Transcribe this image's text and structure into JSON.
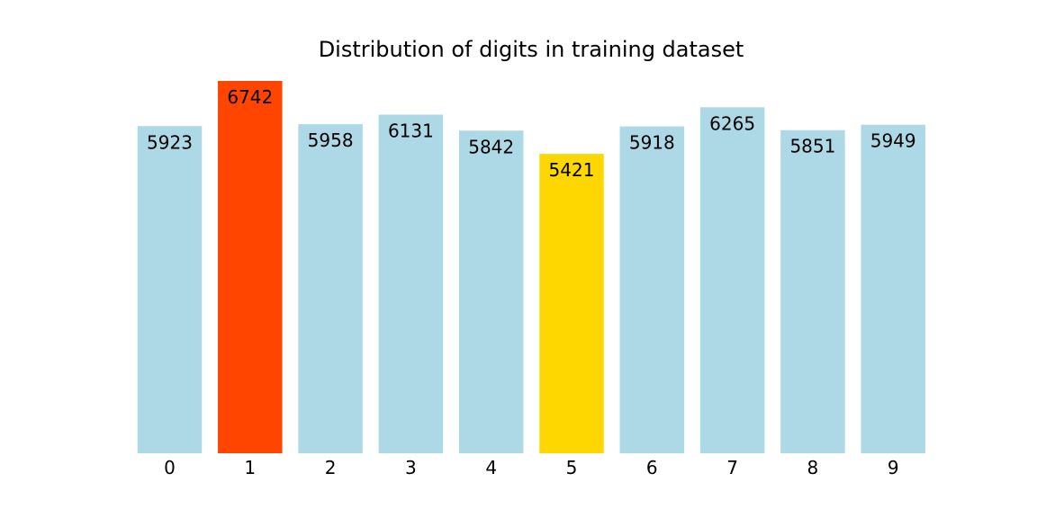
{
  "chart_data": {
    "type": "bar",
    "title": "Distribution of digits in training dataset",
    "xlabel": "",
    "ylabel": "",
    "categories": [
      "0",
      "1",
      "2",
      "3",
      "4",
      "5",
      "6",
      "7",
      "8",
      "9"
    ],
    "values": [
      5923,
      6742,
      5958,
      6131,
      5842,
      5421,
      5918,
      6265,
      5851,
      5949
    ],
    "data_labels": [
      "5923",
      "6742",
      "5958",
      "6131",
      "5842",
      "5421",
      "5918",
      "6265",
      "5851",
      "5949"
    ],
    "colors": [
      "#add8e6",
      "#ff4500",
      "#add8e6",
      "#add8e6",
      "#add8e6",
      "#ffd700",
      "#add8e6",
      "#add8e6",
      "#add8e6",
      "#add8e6"
    ],
    "ylim": [
      0,
      6742
    ],
    "grid": false,
    "legend": "none",
    "y_axis_visible": false
  }
}
